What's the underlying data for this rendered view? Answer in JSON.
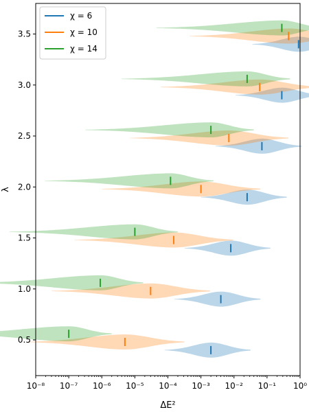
{
  "chart_data": {
    "type": "violin",
    "xlabel": "ΔE²",
    "ylabel": "λ",
    "xscale": "log",
    "xlim": [
      1e-08,
      1
    ],
    "ylim": [
      0.15,
      3.8
    ],
    "x_tick_labels": [
      "10⁻⁸",
      "10⁻⁷",
      "10⁻⁶",
      "10⁻⁵",
      "10⁻⁴",
      "10⁻³",
      "10⁻²",
      "10⁻¹",
      "10⁰"
    ],
    "x_tick_values": [
      1e-08,
      1e-07,
      1e-06,
      1e-05,
      0.0001,
      0.001,
      0.01,
      0.1,
      1
    ],
    "y_tick_labels": [
      "0.5",
      "1.0",
      "1.5",
      "2.0",
      "2.5",
      "3.0",
      "3.5"
    ],
    "y_tick_values": [
      0.5,
      1.0,
      1.5,
      2.0,
      2.5,
      3.0,
      3.5
    ],
    "legend": {
      "position": "upper left",
      "entries": [
        "χ = 6",
        "χ = 10",
        "χ = 14"
      ]
    },
    "colors": {
      "chi6": "#1f77b4",
      "chi10": "#ff7f0e",
      "chi14": "#2ca02c"
    },
    "series": [
      {
        "name": "χ = 6",
        "lambda": [
          0.4,
          0.9,
          1.4,
          1.9,
          2.4,
          2.9,
          3.4
        ],
        "median": [
          0.002,
          0.004,
          0.008,
          0.025,
          0.07,
          0.28,
          0.9
        ]
      },
      {
        "name": "χ = 10",
        "lambda": [
          0.48,
          0.98,
          1.48,
          1.98,
          2.48,
          2.98,
          3.48
        ],
        "median": [
          5e-06,
          3e-05,
          0.00015,
          0.001,
          0.007,
          0.06,
          0.45
        ]
      },
      {
        "name": "χ = 14",
        "lambda": [
          0.56,
          1.06,
          1.56,
          2.06,
          2.56,
          3.06,
          3.56
        ],
        "median": [
          1e-07,
          9e-07,
          1e-05,
          0.00012,
          0.002,
          0.025,
          0.28
        ]
      }
    ]
  }
}
